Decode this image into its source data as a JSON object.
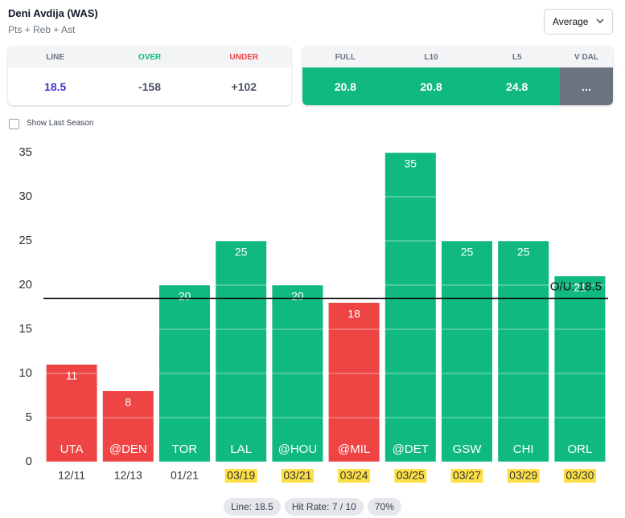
{
  "header": {
    "title": "Deni Avdija (WAS)",
    "subtitle": "Pts + Reb + Ast",
    "dropdown": "Average"
  },
  "odds_card": {
    "columns": [
      "LINE",
      "OVER",
      "UNDER"
    ],
    "values": [
      "18.5",
      "-158",
      "+102"
    ]
  },
  "averages_card": {
    "columns": [
      "FULL",
      "L10",
      "L5",
      "V DAL"
    ],
    "values": [
      "20.8",
      "20.8",
      "24.8",
      "..."
    ]
  },
  "checkbox": {
    "label": "Show Last Season",
    "checked": false
  },
  "chart_data": {
    "type": "bar",
    "categories": [
      "UTA",
      "@DEN",
      "TOR",
      "LAL",
      "@HOU",
      "@MIL",
      "@DET",
      "GSW",
      "CHI",
      "ORL"
    ],
    "dates": [
      "12/11",
      "12/13",
      "01/21",
      "03/19",
      "03/21",
      "03/24",
      "03/25",
      "03/27",
      "03/29",
      "03/30"
    ],
    "date_highlight": [
      false,
      false,
      false,
      true,
      true,
      true,
      true,
      true,
      true,
      true
    ],
    "values": [
      11,
      8,
      20,
      25,
      20,
      18,
      35,
      25,
      25,
      21
    ],
    "ylim": [
      0,
      35
    ],
    "yticks": [
      0,
      5,
      10,
      15,
      20,
      25,
      30,
      35
    ],
    "grid": true,
    "line": 18.5,
    "line_label": "O/U: 18.5",
    "over_color": "#10b981",
    "under_color": "#ef4444",
    "highlight_color": "#fde047"
  },
  "footer": {
    "pills": [
      "Line: 18.5",
      "Hit Rate: 7 / 10",
      "70%"
    ]
  }
}
